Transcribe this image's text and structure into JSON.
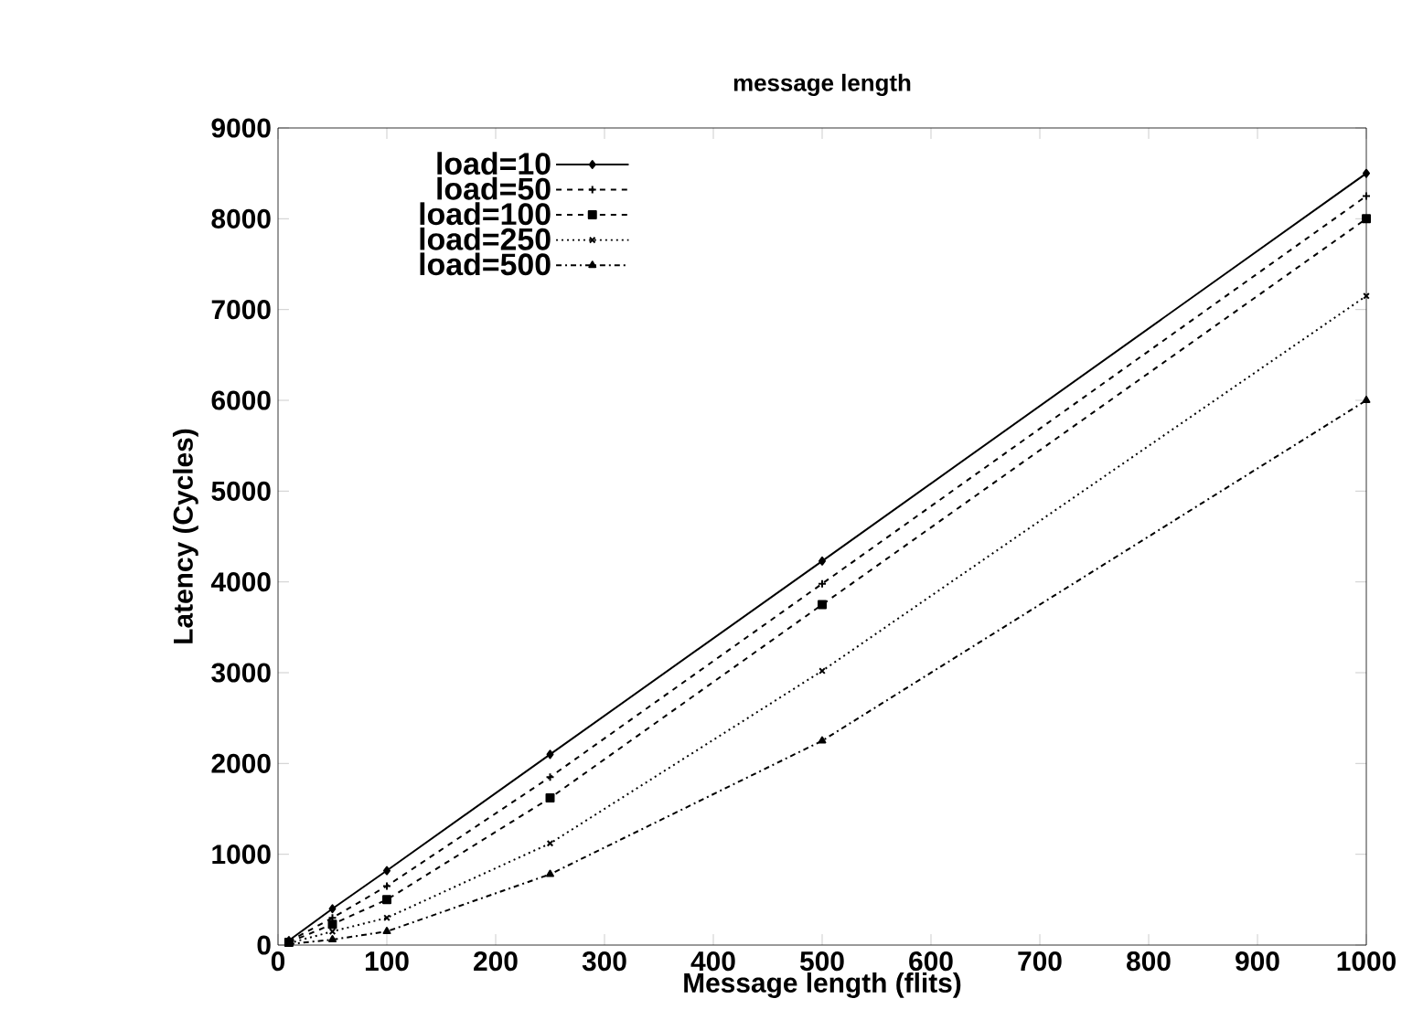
{
  "chart_data": {
    "type": "line",
    "title": "message length",
    "xlabel": "Message length (flits)",
    "ylabel": "Latency (Cycles)",
    "x": [
      10,
      50,
      100,
      250,
      500,
      1000
    ],
    "series": [
      {
        "name": "load=10",
        "color": "#000000",
        "marker": "diamond",
        "line_style": "solid",
        "values": [
          50,
          400,
          820,
          2100,
          4230,
          8500
        ]
      },
      {
        "name": "load=50",
        "color": "#000000",
        "marker": "plus",
        "line_style": "dashed",
        "values": [
          40,
          300,
          650,
          1850,
          3980,
          8250
        ]
      },
      {
        "name": "load=100",
        "color": "#000000",
        "marker": "square",
        "line_style": "dashed",
        "values": [
          30,
          230,
          500,
          1620,
          3750,
          8000
        ]
      },
      {
        "name": "load=250",
        "color": "#000000",
        "marker": "cross",
        "line_style": "dotted",
        "values": [
          20,
          150,
          300,
          1120,
          3020,
          7150
        ]
      },
      {
        "name": "load=500",
        "color": "#000000",
        "marker": "triangle",
        "line_style": "dashdot",
        "values": [
          10,
          60,
          150,
          780,
          2250,
          6000
        ]
      }
    ],
    "xlim": [
      0,
      1000
    ],
    "ylim": [
      0,
      9000
    ],
    "xticks": [
      0,
      100,
      200,
      300,
      400,
      500,
      600,
      700,
      800,
      900,
      1000
    ],
    "yticks": [
      0,
      1000,
      2000,
      3000,
      4000,
      5000,
      6000,
      7000,
      8000,
      9000
    ],
    "grid": false,
    "legend": "top left"
  }
}
